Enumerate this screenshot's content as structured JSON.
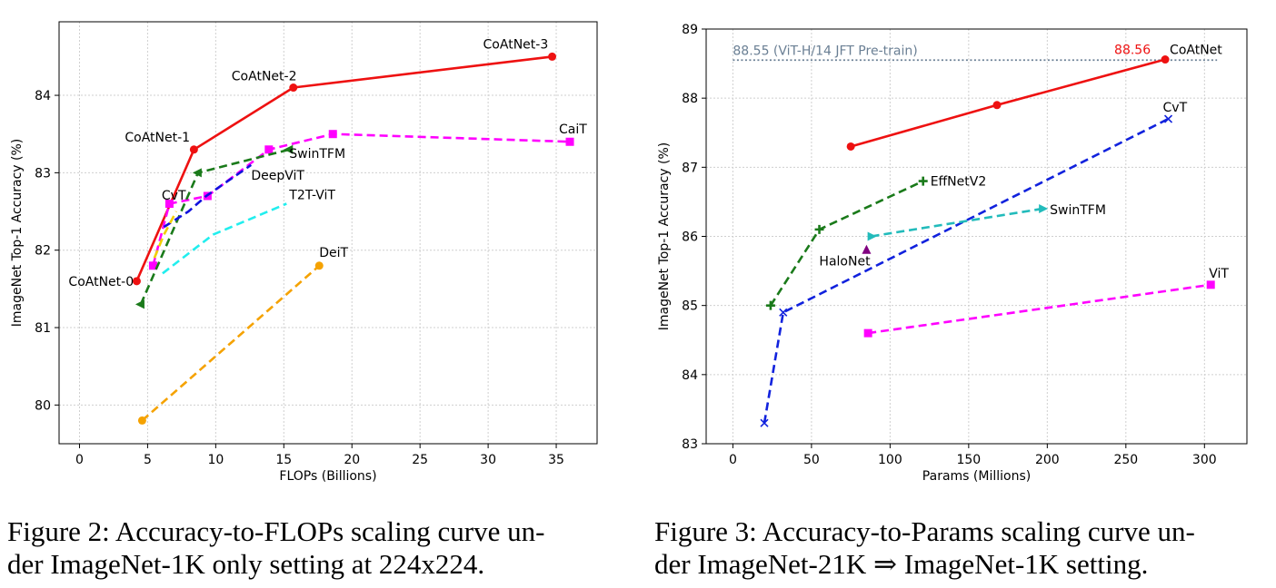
{
  "chart_data": [
    {
      "type": "line",
      "id": "fig2",
      "title": "",
      "xlabel": "FLOPs (Billions)",
      "ylabel": "ImageNet Top-1 Accuracy (%)",
      "xlim": [
        -1.5,
        38
      ],
      "ylim": [
        79.5,
        84.95
      ],
      "xticks": [
        0,
        5,
        10,
        15,
        20,
        25,
        30,
        35
      ],
      "yticks": [
        80,
        81,
        82,
        83,
        84
      ],
      "grid": true,
      "series": [
        {
          "name": "CoAtNet",
          "color": "#ee1111",
          "dash": "",
          "marker": "circle",
          "x": [
            4.2,
            8.4,
            15.7,
            34.7
          ],
          "y": [
            81.6,
            83.3,
            84.1,
            84.5
          ]
        },
        {
          "name": "CaiT",
          "color": "#ff00ff",
          "dash": "9,5",
          "marker": "square",
          "x": [
            5.4,
            6.6,
            9.4,
            13.9,
            18.6,
            36.0
          ],
          "y": [
            81.8,
            82.6,
            82.7,
            83.3,
            83.5,
            83.4
          ]
        },
        {
          "name": "SwinTFM",
          "color": "#1a7a1a",
          "dash": "9,5",
          "marker": "tri-left",
          "x": [
            4.5,
            8.7,
            15.4
          ],
          "y": [
            81.3,
            83.0,
            83.3
          ]
        },
        {
          "name": "DeepViT",
          "color": "#1111dd",
          "dash": "9,5",
          "marker": "none",
          "x": [
            6.2,
            8.0,
            9.3,
            12.6
          ],
          "y": [
            82.3,
            82.5,
            82.7,
            83.1
          ]
        },
        {
          "name": "CvT",
          "color": "#f0d000",
          "dash": "9,5",
          "marker": "none",
          "x": [
            5.5,
            6.2,
            7.1
          ],
          "y": [
            81.9,
            82.2,
            82.5
          ]
        },
        {
          "name": "T2T-ViT",
          "color": "#22eeee",
          "dash": "9,5",
          "marker": "none",
          "x": [
            6.1,
            9.8,
            15.2
          ],
          "y": [
            81.7,
            82.2,
            82.6
          ]
        },
        {
          "name": "DeiT",
          "color": "#f5a200",
          "dash": "9,5",
          "marker": "circle",
          "x": [
            4.6,
            17.6
          ],
          "y": [
            79.8,
            81.8
          ]
        }
      ],
      "annotations": [
        {
          "text": "CoAtNet-0",
          "x": 4.2,
          "y": 81.6,
          "dx": -75,
          "dy": 5
        },
        {
          "text": "CoAtNet-1",
          "x": 8.4,
          "y": 83.3,
          "dx": -76,
          "dy": -9
        },
        {
          "text": "CoAtNet-2",
          "x": 15.7,
          "y": 84.1,
          "dx": -68,
          "dy": -8
        },
        {
          "text": "CoAtNet-3",
          "x": 34.7,
          "y": 84.5,
          "dx": -76,
          "dy": -9
        },
        {
          "text": "CaiT",
          "x": 36.0,
          "y": 83.4,
          "dx": -12,
          "dy": -9
        },
        {
          "text": "SwinTFM",
          "x": 15.4,
          "y": 83.3,
          "dx": 0,
          "dy": 9
        },
        {
          "text": "DeepViT",
          "x": 12.6,
          "y": 83.1,
          "dx": 0,
          "dy": 16
        },
        {
          "text": "CvT",
          "x": 7.1,
          "y": 82.5,
          "dx": -16,
          "dy": -13
        },
        {
          "text": "T2T-ViT",
          "x": 15.2,
          "y": 82.6,
          "dx": 3,
          "dy": -5
        },
        {
          "text": "DeiT",
          "x": 17.6,
          "y": 81.8,
          "dx": 0,
          "dy": -10
        }
      ]
    },
    {
      "type": "line",
      "id": "fig3",
      "title": "",
      "xlabel": "Params (Millions)",
      "ylabel": "ImageNet Top-1 Accuracy (%)",
      "xlim": [
        -17,
        327
      ],
      "ylim": [
        83,
        89
      ],
      "xticks": [
        0,
        50,
        100,
        150,
        200,
        250,
        300
      ],
      "yticks": [
        83,
        84,
        85,
        86,
        87,
        88,
        89
      ],
      "grid": true,
      "reference_line": {
        "y": 88.55,
        "x_from": 0,
        "x_to": 308,
        "label": "88.55 (ViT-H/14 JFT Pre-train)",
        "color": "#6a7f94"
      },
      "series": [
        {
          "name": "CoAtNet",
          "color": "#ee1111",
          "dash": "",
          "marker": "circle",
          "x": [
            75,
            168,
            275
          ],
          "y": [
            87.3,
            87.9,
            88.56
          ]
        },
        {
          "name": "CvT",
          "color": "#1122dd",
          "dash": "9,5",
          "marker": "x",
          "x": [
            20,
            32,
            277
          ],
          "y": [
            83.3,
            84.9,
            87.7
          ]
        },
        {
          "name": "EffNetV2",
          "color": "#1a7a1a",
          "dash": "9,5",
          "marker": "plus",
          "x": [
            24,
            55,
            121
          ],
          "y": [
            85.0,
            86.1,
            86.8
          ]
        },
        {
          "name": "SwinTFM",
          "color": "#22bbbb",
          "dash": "9,5",
          "marker": "tri-right",
          "x": [
            88,
            197
          ],
          "y": [
            86.0,
            86.4
          ]
        },
        {
          "name": "ViT",
          "color": "#ff00ff",
          "dash": "9,5",
          "marker": "square",
          "x": [
            86,
            304
          ],
          "y": [
            84.6,
            85.3
          ]
        },
        {
          "name": "HaloNet",
          "color": "#800080",
          "dash": "",
          "marker": "triangle",
          "x": [
            85
          ],
          "y": [
            85.8
          ]
        }
      ],
      "annotations": [
        {
          "text": "CoAtNet",
          "x": 275,
          "y": 88.56,
          "dx": 5,
          "dy": -6,
          "color": "#000000"
        },
        {
          "text": "88.56",
          "x": 275,
          "y": 88.56,
          "dx": -56,
          "dy": -6,
          "color": "#ee1111"
        },
        {
          "text": "CvT",
          "x": 277,
          "y": 87.7,
          "dx": -6,
          "dy": -8,
          "color": "#000000"
        },
        {
          "text": "EffNetV2",
          "x": 121,
          "y": 86.8,
          "dx": 8,
          "dy": 5,
          "color": "#000000"
        },
        {
          "text": "SwinTFM",
          "x": 197,
          "y": 86.4,
          "dx": 8,
          "dy": 6,
          "color": "#000000"
        },
        {
          "text": "HaloNet",
          "x": 85,
          "y": 85.8,
          "dx": -52,
          "dy": 17,
          "color": "#000000"
        },
        {
          "text": "ViT",
          "x": 304,
          "y": 85.3,
          "dx": -2,
          "dy": -8,
          "color": "#000000"
        }
      ]
    }
  ],
  "captions": {
    "fig2_line1": "Figure 2: Accuracy-to-FLOPs scaling curve un-",
    "fig2_line2": "der ImageNet-1K only setting at 224x224.",
    "fig3_line1": "Figure 3: Accuracy-to-Params scaling curve un-",
    "fig3_line2": "der ImageNet-21K ⇒ ImageNet-1K setting."
  }
}
